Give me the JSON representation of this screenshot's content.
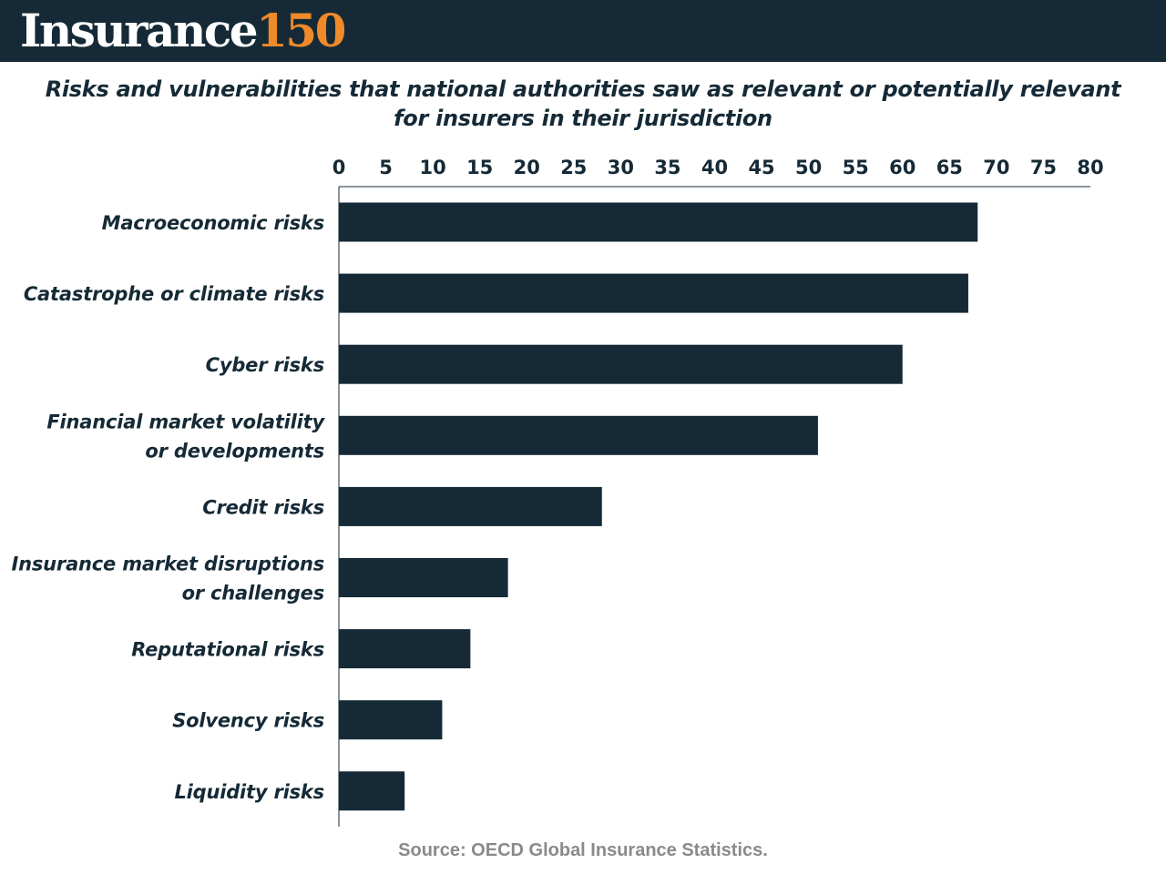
{
  "header": {
    "logo_word": "Insurance",
    "logo_number": "150",
    "background_color": "#152a36",
    "accent_color": "#ee8a2a"
  },
  "chart_data": {
    "type": "bar",
    "orientation": "horizontal",
    "title": "Risks and vulnerabilities that national authorities saw as relevant or potentially relevant for insurers in their jurisdiction",
    "categories": [
      "Macroeconomic risks",
      "Catastrophe or climate risks",
      "Cyber risks",
      "Financial market volatility or developments",
      "Credit risks",
      "Insurance market disruptions or challenges",
      "Reputational risks",
      "Solvency risks",
      "Liquidity risks"
    ],
    "category_label_lines": [
      [
        "Macroeconomic risks"
      ],
      [
        "Catastrophe or climate risks"
      ],
      [
        "Cyber risks"
      ],
      [
        "Financial market volatility",
        "or developments"
      ],
      [
        "Credit risks"
      ],
      [
        "Insurance market disruptions",
        "or challenges"
      ],
      [
        "Reputational risks"
      ],
      [
        "Solvency risks"
      ],
      [
        "Liquidity risks"
      ]
    ],
    "values": [
      68,
      67,
      60,
      51,
      28,
      18,
      14,
      11,
      7
    ],
    "xlim": [
      0,
      80
    ],
    "xticks": [
      0,
      5,
      10,
      15,
      20,
      25,
      30,
      35,
      40,
      45,
      50,
      55,
      60,
      65,
      70,
      75,
      80
    ],
    "x_axis_position": "top",
    "grid": false,
    "bar_color": "#152a36",
    "xlabel": "",
    "ylabel": ""
  },
  "source": "Source: OECD Global Insurance Statistics."
}
